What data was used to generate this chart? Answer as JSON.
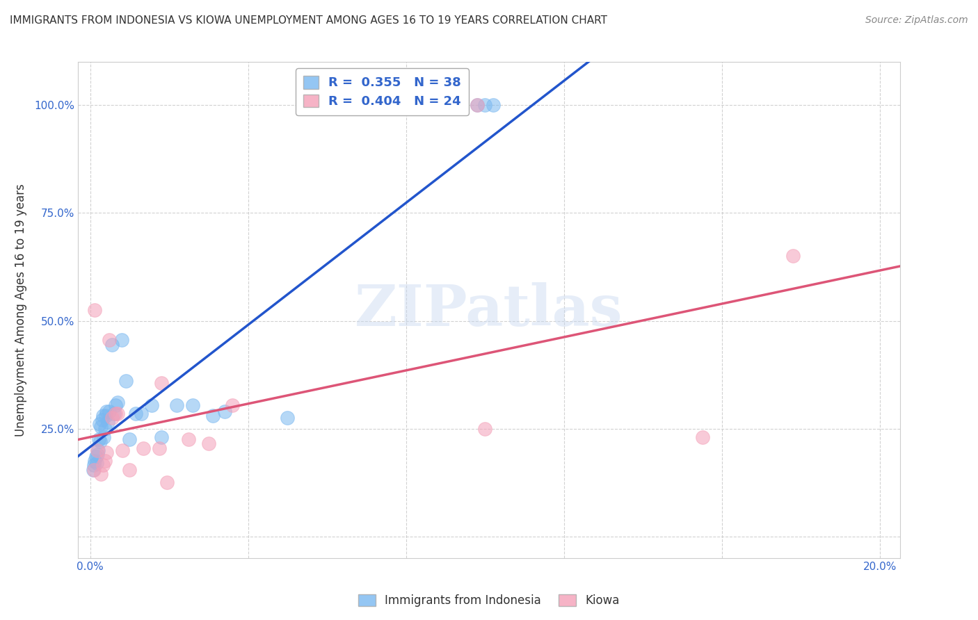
{
  "title": "IMMIGRANTS FROM INDONESIA VS KIOWA UNEMPLOYMENT AMONG AGES 16 TO 19 YEARS CORRELATION CHART",
  "source": "Source: ZipAtlas.com",
  "ylabel": "Unemployment Among Ages 16 to 19 years",
  "legend_label1": "Immigrants from Indonesia",
  "legend_label2": "Kiowa",
  "R1": 0.355,
  "N1": 38,
  "R2": 0.404,
  "N2": 24,
  "blue_color": "#7ab8f0",
  "pink_color": "#f4a0b8",
  "blue_line_color": "#2255cc",
  "pink_line_color": "#dd5577",
  "watermark_text": "ZIPatlas",
  "blue_x": [
    0.0008,
    0.001,
    0.0012,
    0.0015,
    0.0016,
    0.0018,
    0.002,
    0.0022,
    0.0024,
    0.0026,
    0.0028,
    0.003,
    0.0032,
    0.0035,
    0.0038,
    0.004,
    0.0042,
    0.0045,
    0.0048,
    0.0055,
    0.006,
    0.0065,
    0.007,
    0.008,
    0.009,
    0.01,
    0.0115,
    0.013,
    0.0155,
    0.018,
    0.022,
    0.026,
    0.031,
    0.034,
    0.098,
    0.1,
    0.102,
    0.05
  ],
  "blue_y": [
    0.155,
    0.165,
    0.175,
    0.185,
    0.17,
    0.19,
    0.2,
    0.225,
    0.26,
    0.22,
    0.255,
    0.27,
    0.28,
    0.23,
    0.25,
    0.28,
    0.29,
    0.265,
    0.29,
    0.445,
    0.285,
    0.305,
    0.31,
    0.455,
    0.36,
    0.225,
    0.285,
    0.285,
    0.305,
    0.23,
    0.305,
    0.305,
    0.28,
    0.29,
    1.0,
    1.0,
    1.0,
    0.275
  ],
  "pink_x": [
    0.001,
    0.0012,
    0.0018,
    0.0028,
    0.0032,
    0.0038,
    0.0042,
    0.0048,
    0.0055,
    0.0065,
    0.007,
    0.0082,
    0.01,
    0.0135,
    0.0175,
    0.018,
    0.0195,
    0.025,
    0.03,
    0.098,
    0.036,
    0.1,
    0.155,
    0.178
  ],
  "pink_y": [
    0.155,
    0.525,
    0.2,
    0.145,
    0.165,
    0.175,
    0.195,
    0.455,
    0.275,
    0.285,
    0.285,
    0.2,
    0.155,
    0.205,
    0.205,
    0.355,
    0.125,
    0.225,
    0.215,
    1.0,
    0.305,
    0.25,
    0.23,
    0.65
  ],
  "xmin": -0.003,
  "xmax": 0.205,
  "ymin": -0.05,
  "ymax": 1.1
}
